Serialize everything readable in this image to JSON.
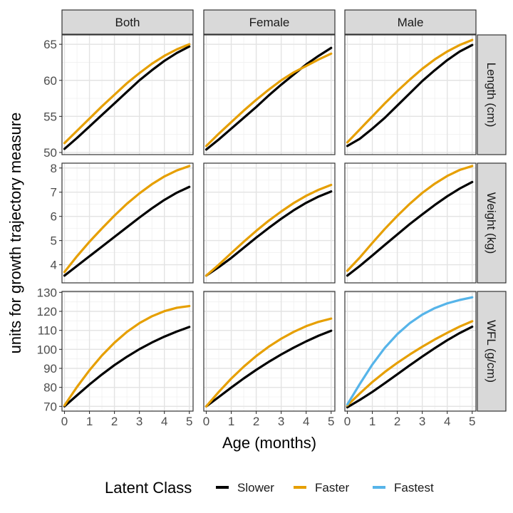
{
  "chart_data": {
    "type": "line",
    "facet_columns": [
      "Both",
      "Female",
      "Male"
    ],
    "facet_rows": [
      "Length (cm)",
      "Weight (kg)",
      "WFL (g/cm)"
    ],
    "xlabel": "Age (months)",
    "ylabel": "units for growth trajectory measure",
    "x_ticks": [
      "0",
      "1",
      "2",
      "3",
      "4",
      "5"
    ],
    "xlim": [
      -0.1,
      5.15
    ],
    "grid": true,
    "legend": {
      "title": "Latent Class",
      "position": "bottom",
      "entries": [
        "Slower",
        "Faster",
        "Fastest"
      ]
    },
    "series_colors": {
      "Slower": "#000000",
      "Faster": "#E69F00",
      "Fastest": "#56B4E9"
    },
    "x": [
      0,
      0.5,
      1,
      1.5,
      2,
      2.5,
      3,
      3.5,
      4,
      4.5,
      5
    ],
    "rows": [
      {
        "label": "Length (cm)",
        "ylim": [
          49.7,
          66.3
        ],
        "y_ticks": [
          "50",
          "55",
          "60",
          "65"
        ],
        "panels": [
          {
            "facet": "Both",
            "series": [
              {
                "name": "Slower",
                "values": [
                  50.5,
                  52.0,
                  53.6,
                  55.2,
                  56.8,
                  58.4,
                  60.0,
                  61.4,
                  62.7,
                  63.8,
                  64.7
                ]
              },
              {
                "name": "Faster",
                "values": [
                  51.3,
                  53.0,
                  54.7,
                  56.4,
                  58.0,
                  59.6,
                  61.0,
                  62.3,
                  63.4,
                  64.3,
                  65.0
                ]
              }
            ]
          },
          {
            "facet": "Female",
            "series": [
              {
                "name": "Slower",
                "values": [
                  50.4,
                  51.8,
                  53.3,
                  54.8,
                  56.3,
                  57.9,
                  59.4,
                  60.8,
                  62.2,
                  63.4,
                  64.5
                ]
              },
              {
                "name": "Faster",
                "values": [
                  50.9,
                  52.6,
                  54.2,
                  55.8,
                  57.3,
                  58.7,
                  60.0,
                  61.1,
                  62.0,
                  62.9,
                  63.7
                ]
              }
            ]
          },
          {
            "facet": "Male",
            "series": [
              {
                "name": "Slower",
                "values": [
                  50.9,
                  51.9,
                  53.3,
                  54.8,
                  56.5,
                  58.2,
                  59.9,
                  61.4,
                  62.8,
                  64.0,
                  64.9
                ]
              },
              {
                "name": "Faster",
                "values": [
                  51.4,
                  53.2,
                  55.0,
                  56.8,
                  58.5,
                  60.1,
                  61.6,
                  62.9,
                  64.0,
                  64.9,
                  65.6
                ]
              }
            ]
          }
        ]
      },
      {
        "label": "Weight (kg)",
        "ylim": [
          3.25,
          8.2
        ],
        "y_ticks": [
          "4",
          "5",
          "6",
          "7",
          "8"
        ],
        "panels": [
          {
            "facet": "Both",
            "series": [
              {
                "name": "Slower",
                "values": [
                  3.55,
                  3.95,
                  4.35,
                  4.75,
                  5.15,
                  5.55,
                  5.95,
                  6.33,
                  6.68,
                  6.98,
                  7.22
                ]
              },
              {
                "name": "Faster",
                "values": [
                  3.7,
                  4.35,
                  4.95,
                  5.5,
                  6.03,
                  6.52,
                  6.95,
                  7.33,
                  7.65,
                  7.9,
                  8.08
                ]
              }
            ]
          },
          {
            "facet": "Female",
            "series": [
              {
                "name": "Slower",
                "values": [
                  3.55,
                  3.9,
                  4.28,
                  4.7,
                  5.12,
                  5.52,
                  5.9,
                  6.25,
                  6.56,
                  6.82,
                  7.03
                ]
              },
              {
                "name": "Faster",
                "values": [
                  3.55,
                  4.0,
                  4.48,
                  4.95,
                  5.4,
                  5.82,
                  6.2,
                  6.55,
                  6.85,
                  7.1,
                  7.3
                ]
              }
            ]
          },
          {
            "facet": "Male",
            "series": [
              {
                "name": "Slower",
                "values": [
                  3.55,
                  3.95,
                  4.38,
                  4.82,
                  5.25,
                  5.68,
                  6.08,
                  6.47,
                  6.83,
                  7.15,
                  7.42
                ]
              },
              {
                "name": "Faster",
                "values": [
                  3.75,
                  4.3,
                  4.9,
                  5.48,
                  6.02,
                  6.52,
                  6.97,
                  7.35,
                  7.67,
                  7.92,
                  8.08
                ]
              }
            ]
          }
        ]
      },
      {
        "label": "WFL (g/cm)",
        "ylim": [
          67.5,
          130.5
        ],
        "y_ticks": [
          "70",
          "80",
          "90",
          "100",
          "110",
          "120",
          "130"
        ],
        "panels": [
          {
            "facet": "Both",
            "series": [
              {
                "name": "Slower",
                "values": [
                  70.0,
                  75.8,
                  81.5,
                  86.8,
                  91.7,
                  96.1,
                  100.1,
                  103.6,
                  106.7,
                  109.4,
                  111.8
                ]
              },
              {
                "name": "Faster",
                "values": [
                  70.5,
                  80.2,
                  89.0,
                  96.8,
                  103.5,
                  109.2,
                  113.8,
                  117.4,
                  120.1,
                  121.9,
                  122.8
                ]
              }
            ]
          },
          {
            "facet": "Female",
            "series": [
              {
                "name": "Slower",
                "values": [
                  70.0,
                  74.9,
                  79.9,
                  84.7,
                  89.2,
                  93.4,
                  97.3,
                  100.9,
                  104.2,
                  107.2,
                  109.8
                ]
              },
              {
                "name": "Faster",
                "values": [
                  70.0,
                  77.6,
                  84.6,
                  90.9,
                  96.5,
                  101.4,
                  105.6,
                  109.2,
                  112.2,
                  114.5,
                  116.2
                ]
              }
            ]
          },
          {
            "facet": "Male",
            "series": [
              {
                "name": "Slower",
                "values": [
                  69.5,
                  73.4,
                  77.6,
                  82.2,
                  86.9,
                  91.6,
                  96.2,
                  100.6,
                  104.8,
                  108.6,
                  111.9
                ]
              },
              {
                "name": "Faster",
                "values": [
                  70.5,
                  76.8,
                  82.8,
                  88.1,
                  92.9,
                  97.3,
                  101.4,
                  105.2,
                  108.7,
                  112.0,
                  114.8
                ]
              },
              {
                "name": "Fastest",
                "values": [
                  71.0,
                  81.8,
                  92.0,
                  100.8,
                  108.0,
                  113.8,
                  118.3,
                  121.7,
                  124.2,
                  126.0,
                  127.4
                ]
              }
            ]
          }
        ]
      }
    ]
  }
}
